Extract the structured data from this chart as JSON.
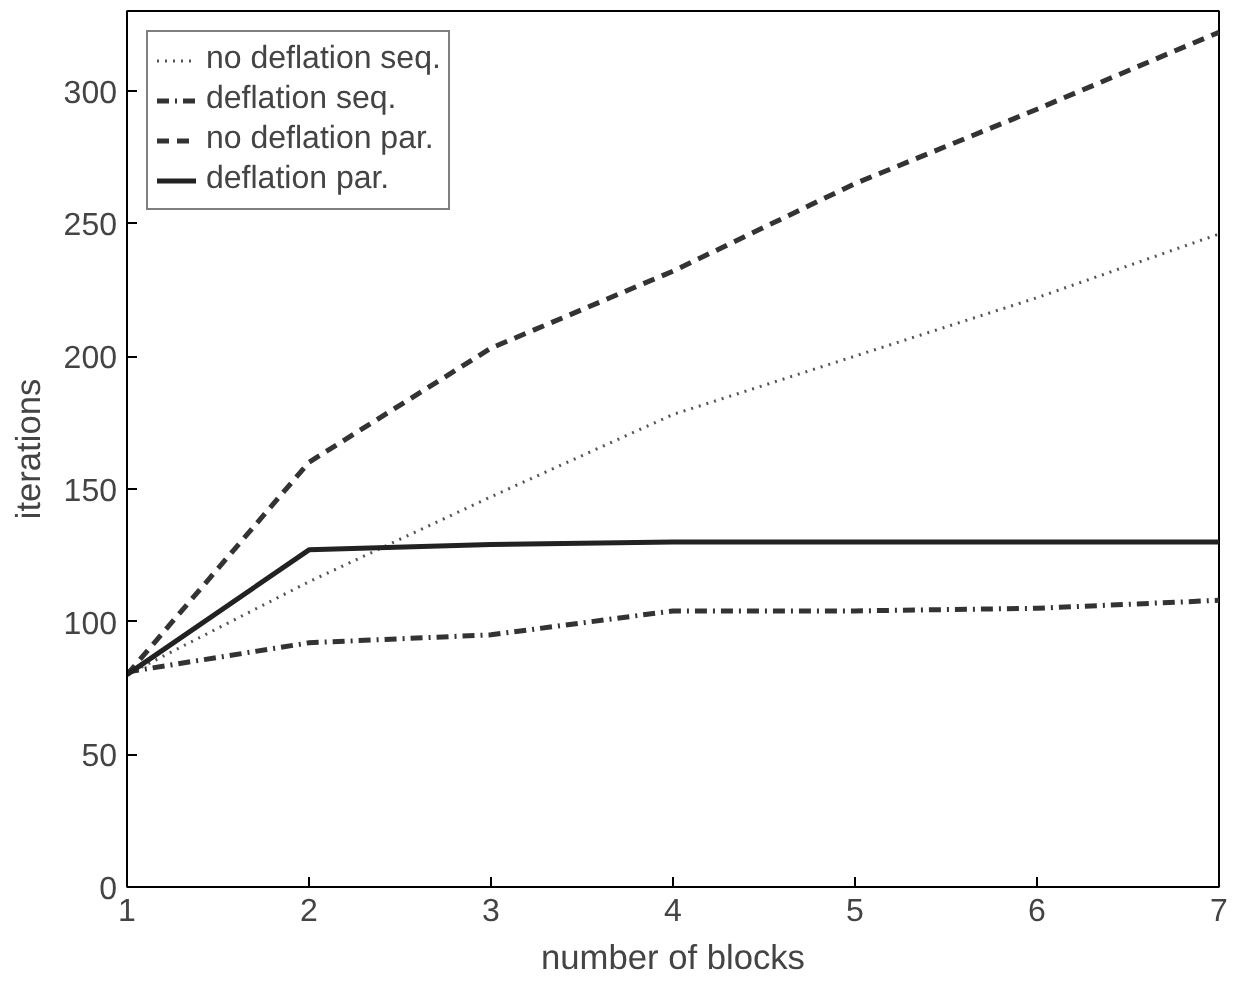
{
  "chart_data": {
    "type": "line",
    "xlabel": "number of blocks",
    "ylabel": "iterations",
    "x": [
      1,
      2,
      3,
      4,
      5,
      6,
      7
    ],
    "series": [
      {
        "name": "no deflation seq.",
        "color": "#555555",
        "line_style": "dotted",
        "values": [
          80,
          115,
          147,
          178,
          200,
          222,
          246
        ]
      },
      {
        "name": "deflation seq.",
        "color": "#333333",
        "line_style": "dashdot",
        "values": [
          81,
          92,
          95,
          104,
          104,
          105,
          108
        ]
      },
      {
        "name": "no deflation par.",
        "color": "#333333",
        "line_style": "dashed",
        "values": [
          80,
          160,
          203,
          232,
          265,
          293,
          322
        ]
      },
      {
        "name": "deflation par.",
        "color": "#222222",
        "line_style": "solid",
        "values": [
          80,
          127,
          129,
          130,
          130,
          130,
          130
        ]
      }
    ],
    "xlim": [
      1,
      7
    ],
    "ylim": [
      0,
      330
    ],
    "xticks": [
      1,
      2,
      3,
      4,
      5,
      6,
      7
    ],
    "yticks": [
      0,
      50,
      100,
      150,
      200,
      250,
      300
    ],
    "grid": false,
    "legend": "top left",
    "marker": "none"
  }
}
